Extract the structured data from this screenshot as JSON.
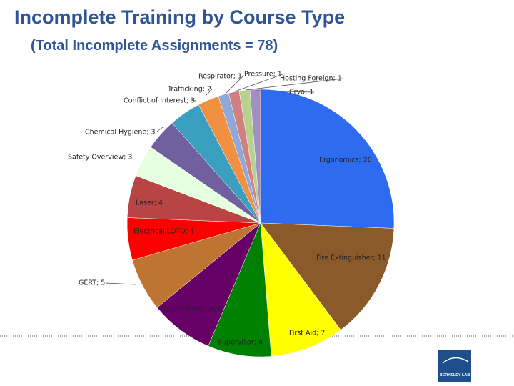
{
  "chart_data": {
    "type": "pie",
    "title": "Incomplete Training by Course Type",
    "subtitle": "(Total Incomplete Assignments = 78)",
    "values": [
      20,
      11,
      7,
      6,
      6,
      5,
      4,
      4,
      3,
      3,
      3,
      2,
      1,
      1,
      1,
      1
    ],
    "value_labels": [
      "Ergonomics; 20",
      "Fire Extinguisher; 11",
      "First Aid; 7",
      "Supervisor; 6",
      "Cyber Security; 6",
      "GERT; 5",
      "Electrical/LOTO; 4",
      "Laser; 4",
      "Safety Overview; 3",
      "Chemical Hygiene; 3",
      "Conflict of Interest; 3",
      "Trafficking; 2",
      "Respirator; 1",
      "Pressure; 1",
      "Hosting Foreign; 1",
      "Cryo; 1"
    ],
    "colors": [
      "#2F6BF0",
      "#8B5A2B",
      "#FFFF00",
      "#008000",
      "#660066",
      "#C07432",
      "#FF0000",
      "#B84444",
      "#E6FFE0",
      "#7060A0",
      "#3BA0C0",
      "#F09040",
      "#8FA8D8",
      "#D08080",
      "#B8D090",
      "#A090C0"
    ]
  },
  "logo_text": "BERKELEY LAB"
}
